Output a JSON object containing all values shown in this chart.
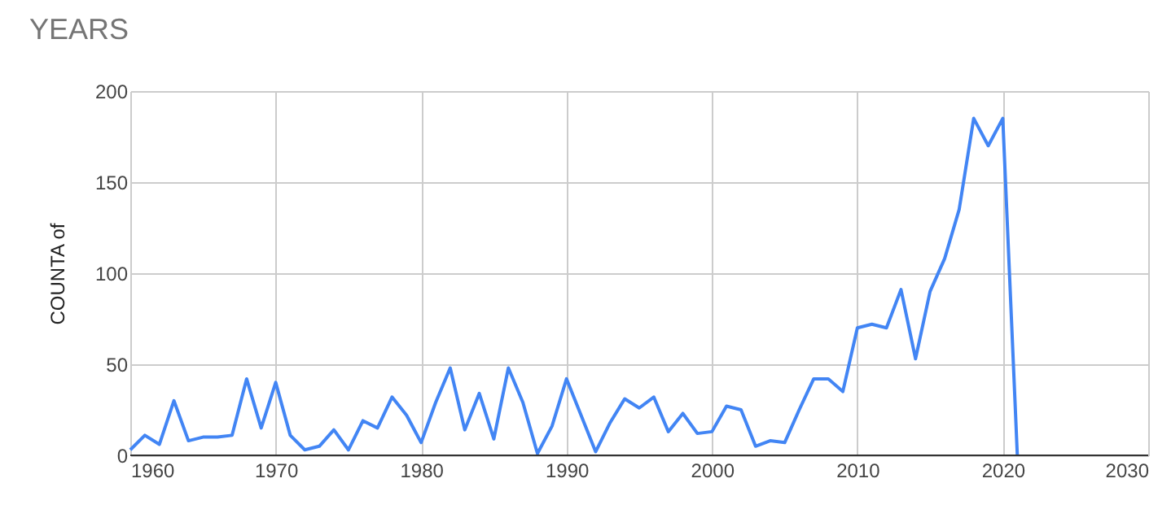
{
  "chart_data": {
    "type": "line",
    "title": "YEARS",
    "ylabel": "COUNTA of",
    "x": [
      1960,
      1961,
      1962,
      1963,
      1964,
      1965,
      1966,
      1967,
      1968,
      1969,
      1970,
      1971,
      1972,
      1973,
      1974,
      1975,
      1976,
      1977,
      1978,
      1979,
      1980,
      1981,
      1982,
      1983,
      1984,
      1985,
      1986,
      1987,
      1988,
      1989,
      1990,
      1991,
      1992,
      1993,
      1994,
      1995,
      1996,
      1997,
      1998,
      1999,
      2000,
      2001,
      2002,
      2003,
      2004,
      2005,
      2006,
      2007,
      2008,
      2009,
      2010,
      2011,
      2012,
      2013,
      2014,
      2015,
      2016,
      2017,
      2018,
      2019,
      2020,
      2021
    ],
    "series": [
      {
        "color": "#4285f4",
        "values": [
          3,
          11,
          6,
          30,
          8,
          10,
          10,
          11,
          42,
          15,
          40,
          11,
          3,
          5,
          14,
          3,
          19,
          15,
          32,
          22,
          7,
          29,
          48,
          14,
          34,
          9,
          48,
          29,
          1,
          16,
          42,
          22,
          2,
          18,
          31,
          26,
          32,
          13,
          23,
          12,
          13,
          27,
          25,
          5,
          8,
          7,
          25,
          42,
          42,
          35,
          70,
          72,
          70,
          91,
          53,
          90,
          108,
          135,
          185,
          170,
          185,
          0
        ]
      }
    ],
    "xlim": [
      1960,
      2030
    ],
    "xticks": [
      1960,
      1970,
      1980,
      1990,
      2000,
      2010,
      2020,
      2030
    ],
    "ylim": [
      0,
      200
    ],
    "yticks": [
      0,
      50,
      100,
      150,
      200
    ],
    "grid": true,
    "legend": false
  }
}
